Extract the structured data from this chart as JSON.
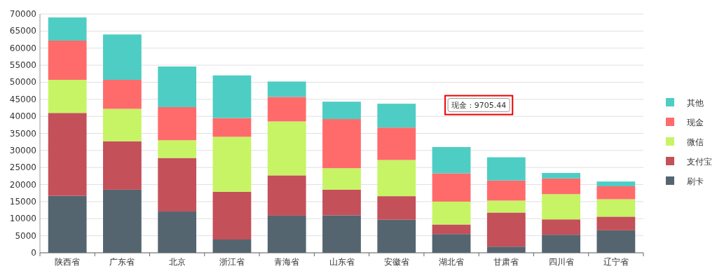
{
  "chart_data": {
    "type": "bar",
    "stacked": true,
    "categories": [
      "陕西省",
      "广东省",
      "北京",
      "浙江省",
      "青海省",
      "山东省",
      "安徽省",
      "湖北省",
      "甘肃省",
      "四川省",
      "辽宁省"
    ],
    "series": [
      {
        "name": "刷卡",
        "color": "#546570",
        "values": [
          16700,
          18500,
          12100,
          3900,
          10900,
          11000,
          9700,
          5500,
          1800,
          5300,
          6600
        ]
      },
      {
        "name": "支付宝",
        "color": "#c4505a",
        "values": [
          24300,
          14200,
          15700,
          14000,
          11800,
          7500,
          6900,
          2800,
          10000,
          4500,
          4000
        ]
      },
      {
        "name": "微信",
        "color": "#c7f464",
        "values": [
          9700,
          9500,
          5200,
          16100,
          15800,
          6300,
          10600,
          6700,
          3500,
          7400,
          5100
        ]
      },
      {
        "name": "现金",
        "color": "#ff6b6b",
        "values": [
          11500,
          8500,
          9705.44,
          5500,
          7200,
          14400,
          9500,
          8300,
          5900,
          4600,
          3800
        ]
      },
      {
        "name": "其他",
        "color": "#4ecdc4",
        "values": [
          6800,
          13300,
          11900,
          12500,
          4500,
          5100,
          7000,
          7700,
          6800,
          1600,
          1400
        ]
      }
    ],
    "ylim": [
      0,
      70000
    ],
    "yticks": [
      0,
      5000,
      10000,
      15000,
      20000,
      25000,
      30000,
      35000,
      40000,
      45000,
      50000,
      55000,
      60000,
      65000,
      70000
    ],
    "grid": "y",
    "legend": "right",
    "annotations": [
      "现金 : 9705.44"
    ]
  }
}
